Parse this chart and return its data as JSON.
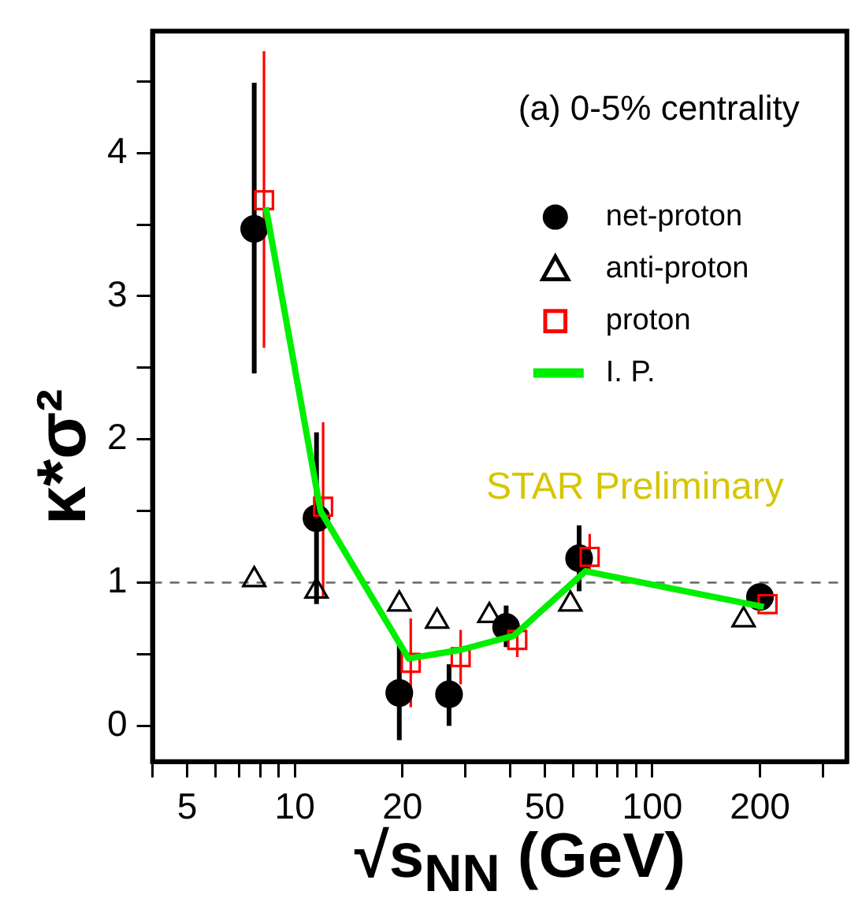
{
  "chart_data": {
    "type": "scatter",
    "xlabel": "√s$_{NN}$ (GeV)",
    "ylabel": "κ*σ²",
    "log": "x",
    "xlim": [
      4,
      350
    ],
    "ylim": [
      -0.25,
      4.85
    ],
    "xticks": [
      {
        "value": 4,
        "label": null
      },
      5,
      {
        "value": 6,
        "label": null
      },
      {
        "value": 7,
        "label": null
      },
      {
        "value": 8,
        "label": null
      },
      {
        "value": 9,
        "label": null
      },
      10,
      20,
      {
        "value": 30,
        "label": null
      },
      {
        "value": 40,
        "label": null
      },
      50,
      {
        "value": 60,
        "label": null
      },
      {
        "value": 70,
        "label": null
      },
      {
        "value": 80,
        "label": null
      },
      {
        "value": 90,
        "label": null
      },
      100,
      200,
      {
        "value": 300,
        "label": null
      }
    ],
    "yticks": [
      0,
      {
        "value": 0.5,
        "label": null
      },
      1,
      {
        "value": 1.5,
        "label": null
      },
      2,
      {
        "value": 2.5,
        "label": null
      },
      3,
      {
        "value": 3.5,
        "label": null
      },
      4,
      {
        "value": 4.5,
        "label": null
      }
    ],
    "series": [
      {
        "name": "net-proton",
        "type": "scatter",
        "marker": "circle",
        "color": "#000000",
        "x": [
          7.7,
          11.5,
          19.6,
          27,
          39,
          62.4,
          200
        ],
        "values": [
          3.47,
          1.45,
          0.23,
          0.22,
          0.69,
          1.17,
          0.9
        ],
        "errors": [
          [
            2.46,
            4.49
          ],
          [
            0.85,
            2.05
          ],
          [
            -0.1,
            0.57
          ],
          [
            0,
            0.43
          ],
          [
            0.55,
            0.84
          ],
          [
            0.94,
            1.4
          ],
          null
        ]
      },
      {
        "name": "anti-proton",
        "type": "scatter",
        "marker": "triangle",
        "color": "#000000",
        "x": [
          7.7,
          11.5,
          19.6,
          25,
          35,
          59,
          180
        ],
        "values": [
          1.02,
          0.94,
          0.85,
          0.73,
          0.77,
          0.85,
          0.74
        ]
      },
      {
        "name": "proton",
        "type": "scatter",
        "marker": "square",
        "color": "#ff0000",
        "x": [
          8.2,
          12,
          21.1,
          29.1,
          41.9,
          66.8,
          210
        ],
        "values": [
          3.67,
          1.53,
          0.44,
          0.48,
          0.6,
          1.18,
          0.85
        ],
        "errors": [
          [
            2.64,
            4.71
          ],
          [
            0.9,
            2.12
          ],
          [
            0.13,
            0.75
          ],
          [
            0.29,
            0.67
          ],
          [
            0.48,
            0.67
          ],
          [
            1.06,
            1.34
          ],
          null
        ]
      },
      {
        "name": "I. P.",
        "type": "line",
        "marker": "none",
        "color": "#00ee00",
        "x": [
          8.3,
          11.8,
          20.8,
          29,
          41,
          65,
          205
        ],
        "values": [
          3.62,
          1.5,
          0.47,
          0.53,
          0.63,
          1.08,
          0.83
        ]
      }
    ],
    "ref_lines": [
      {
        "axis": "y",
        "value": 1,
        "color": "#666666",
        "line_style": "dashed"
      }
    ],
    "legend": "top right",
    "annotations": [
      "(a) 0-5% centrality",
      "STAR Preliminary"
    ]
  }
}
